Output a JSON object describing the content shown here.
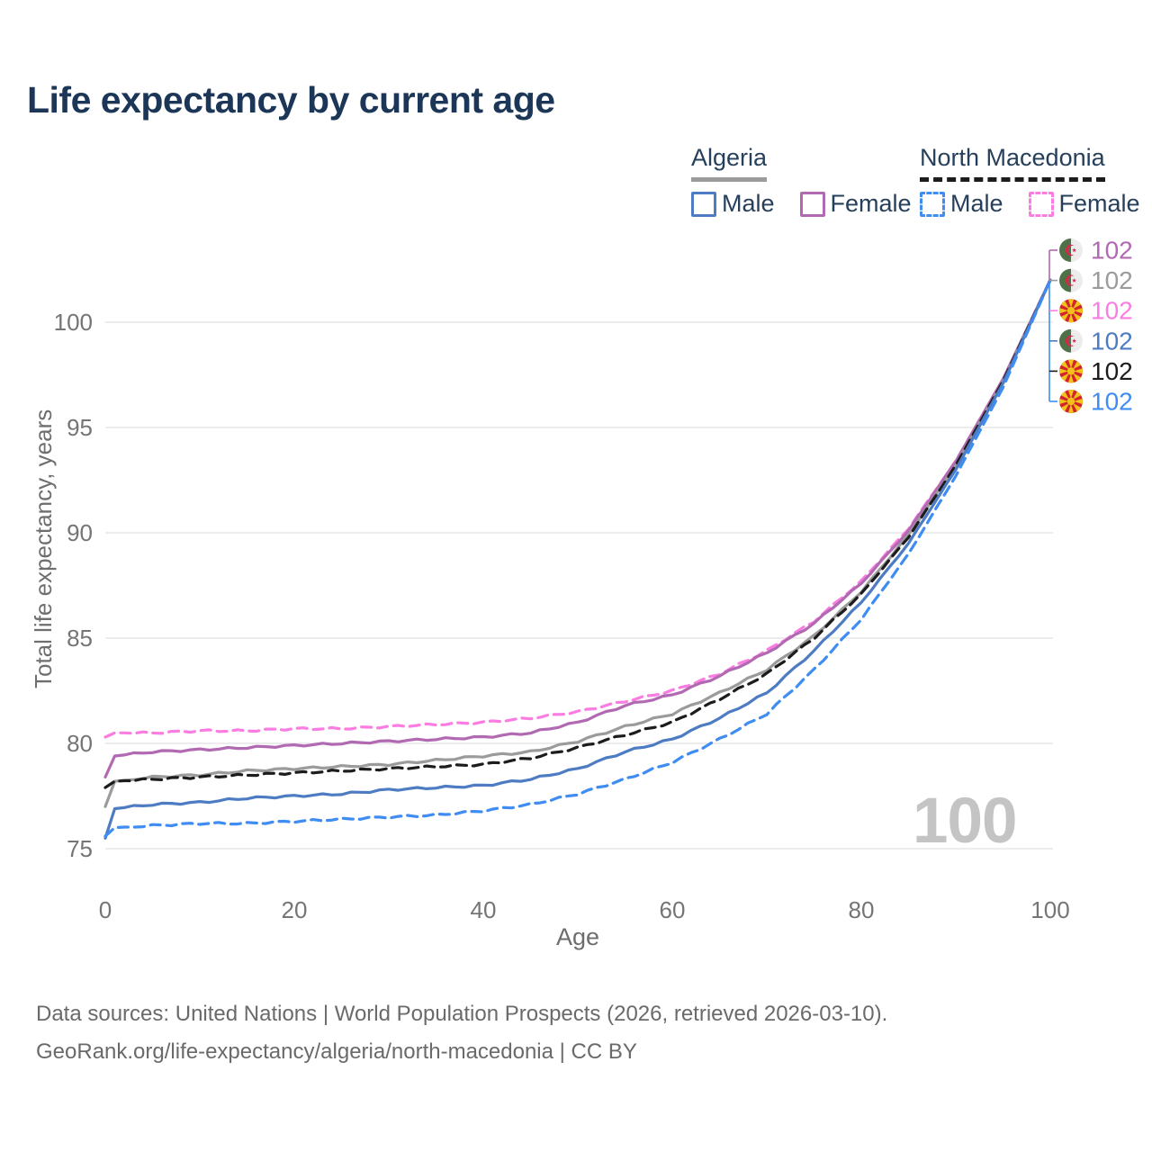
{
  "title": "Life expectancy by current age",
  "watermark": "100",
  "colors": {
    "title_text": "#1c3658",
    "legend_text": "#26405c",
    "axis_text": "#757575",
    "footer_text": "#6a6a6a",
    "grid": "#ececec",
    "watermark": "#c4c4c4"
  },
  "legend": {
    "groups": [
      {
        "name": "Algeria",
        "line_style": "solid",
        "underline_color": "#9b9b9b",
        "items": [
          {
            "label": "Male",
            "color": "#4d7cc3"
          },
          {
            "label": "Female",
            "color": "#b169b1"
          }
        ]
      },
      {
        "name": "North Macedonia",
        "line_style": "dashed",
        "underline_color": "#1c1c1c",
        "items": [
          {
            "label": "Male",
            "color": "#3f8df2"
          },
          {
            "label": "Female",
            "color": "#fb7de2"
          }
        ]
      }
    ]
  },
  "chart_data": {
    "type": "line",
    "title": "Life expectancy by current age",
    "xlabel": "Age",
    "ylabel": "Total life expectancy, years",
    "xlim": [
      0,
      100
    ],
    "ylim": [
      75,
      102
    ],
    "xticks": [
      0,
      20,
      40,
      60,
      80,
      100
    ],
    "yticks": [
      75,
      80,
      85,
      90,
      95,
      100
    ],
    "grid": "horizontal",
    "legend_position": "top-right",
    "x": [
      0,
      1,
      5,
      10,
      15,
      20,
      25,
      30,
      35,
      40,
      45,
      50,
      55,
      60,
      65,
      70,
      75,
      80,
      85,
      90,
      95,
      100
    ],
    "series": [
      {
        "name": "North Macedonia Female",
        "country": "North Macedonia",
        "sex": "Female",
        "color": "#fb7de2",
        "dashed": true,
        "values": [
          80.3,
          80.5,
          80.5,
          80.6,
          80.6,
          80.7,
          80.7,
          80.8,
          80.9,
          81.0,
          81.2,
          81.5,
          82.0,
          82.5,
          83.3,
          84.4,
          85.8,
          87.7,
          90.2,
          93.4,
          97.3,
          102
        ]
      },
      {
        "name": "Algeria Female",
        "country": "Algeria",
        "sex": "Female",
        "color": "#b169b1",
        "dashed": false,
        "values": [
          78.4,
          79.4,
          79.6,
          79.7,
          79.8,
          79.9,
          80.0,
          80.1,
          80.2,
          80.3,
          80.5,
          81.0,
          81.8,
          82.3,
          83.2,
          84.3,
          85.7,
          87.6,
          90.1,
          93.4,
          97.3,
          102
        ]
      },
      {
        "name": "Algeria Both sexes",
        "country": "Algeria",
        "sex": "Both",
        "color": "#9b9b9b",
        "dashed": false,
        "values": [
          77.0,
          78.2,
          78.4,
          78.5,
          78.7,
          78.8,
          78.9,
          79.0,
          79.2,
          79.4,
          79.6,
          80.1,
          80.8,
          81.4,
          82.4,
          83.5,
          85.1,
          87.2,
          89.9,
          93.2,
          97.2,
          102
        ]
      },
      {
        "name": "North Macedonia Both sexes",
        "country": "North Macedonia",
        "sex": "Both",
        "color": "#1c1c1c",
        "dashed": true,
        "values": [
          77.9,
          78.2,
          78.3,
          78.4,
          78.5,
          78.6,
          78.7,
          78.8,
          78.9,
          79.0,
          79.3,
          79.8,
          80.4,
          81.0,
          82.1,
          83.3,
          85.0,
          87.1,
          89.8,
          93.2,
          97.2,
          102
        ]
      },
      {
        "name": "Algeria Male",
        "country": "Algeria",
        "sex": "Male",
        "color": "#4d7cc3",
        "dashed": false,
        "values": [
          75.5,
          76.9,
          77.1,
          77.2,
          77.4,
          77.5,
          77.6,
          77.8,
          77.9,
          78.0,
          78.3,
          78.8,
          79.6,
          80.2,
          81.2,
          82.4,
          84.4,
          86.7,
          89.5,
          93.0,
          97.1,
          102
        ]
      },
      {
        "name": "North Macedonia Male",
        "country": "North Macedonia",
        "sex": "Male",
        "color": "#3f8df2",
        "dashed": true,
        "values": [
          75.6,
          76.0,
          76.1,
          76.2,
          76.2,
          76.3,
          76.4,
          76.5,
          76.6,
          76.8,
          77.1,
          77.6,
          78.3,
          79.1,
          80.2,
          81.4,
          83.5,
          85.9,
          89.0,
          92.7,
          96.9,
          102
        ]
      }
    ],
    "end_labels": [
      {
        "series": "Algeria Female",
        "flag": "algeria",
        "value": "102",
        "color": "#b169b1"
      },
      {
        "series": "Algeria Both sexes",
        "flag": "algeria",
        "value": "102",
        "color": "#9b9b9b"
      },
      {
        "series": "North Macedonia Female",
        "flag": "north-macedonia",
        "value": "102",
        "color": "#fb7de2"
      },
      {
        "series": "Algeria Male",
        "flag": "algeria",
        "value": "102",
        "color": "#4d7cc3"
      },
      {
        "series": "North Macedonia Both sexes",
        "flag": "north-macedonia",
        "value": "102",
        "color": "#1c1c1c"
      },
      {
        "series": "North Macedonia Male",
        "flag": "north-macedonia",
        "value": "102",
        "color": "#3f8df2"
      }
    ]
  },
  "footer": {
    "line1": "Data sources: United Nations | World Population Prospects (2026, retrieved 2026-03-10).",
    "line2": "GeoRank.org/life-expectancy/algeria/north-macedonia | CC BY"
  }
}
